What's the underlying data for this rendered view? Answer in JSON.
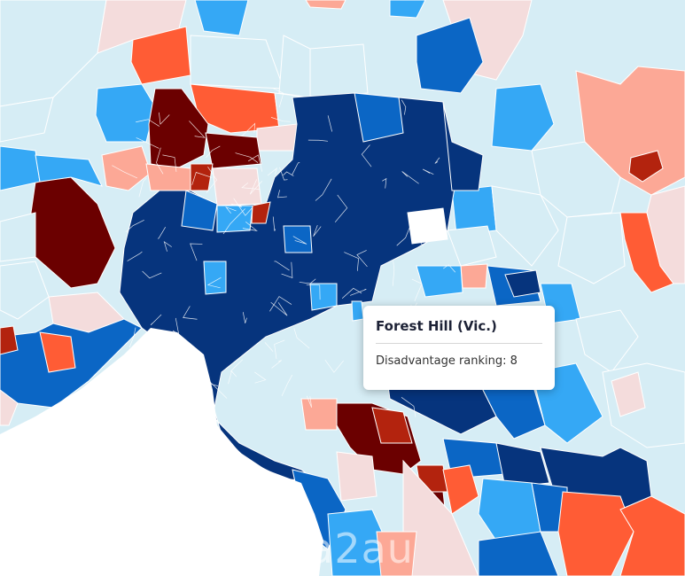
{
  "tooltip": {
    "title": "Forest Hill (Vic.)",
    "label": "Disadvantage ranking:",
    "value": "8"
  },
  "watermark": "na2au",
  "colors": {
    "rank_1": "#6b0000",
    "rank_2": "#b3230e",
    "rank_3": "#ff5c35",
    "rank_4": "#fca896",
    "rank_5": "#f4dcdc",
    "rank_6": "#d6edf5",
    "rank_7": "#35a8f5",
    "rank_8": "#0b66c5",
    "rank_9": "#06347d",
    "water": "#ffffff"
  }
}
